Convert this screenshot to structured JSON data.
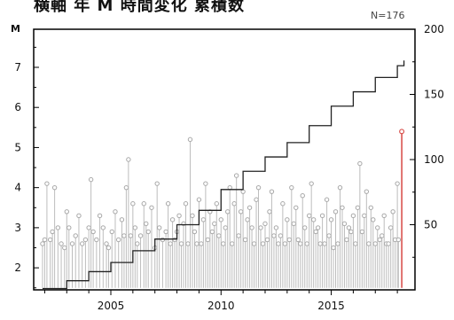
{
  "header": {
    "title": "横軸 年 M 時間変化 累積数",
    "count_label": "N=176"
  },
  "chart_data": {
    "type": "scatter",
    "title": "",
    "left_axis_label": "M",
    "xlim": [
      2001.5,
      2018.8
    ],
    "ylim_left": [
      1.45,
      7.95
    ],
    "ylim_right": [
      0,
      200
    ],
    "x_ticks": [
      2005,
      2010,
      2015
    ],
    "left_ticks": [
      2,
      3,
      4,
      5,
      6,
      7
    ],
    "right_ticks": [
      50,
      100,
      150,
      200
    ],
    "baseline_m": 1.5,
    "events_x": [
      2001.9,
      2002.0,
      2002.1,
      2002.25,
      2002.35,
      2002.45,
      2002.6,
      2002.75,
      2002.9,
      2003.0,
      2003.1,
      2003.25,
      2003.4,
      2003.55,
      2003.7,
      2003.85,
      2004.0,
      2004.1,
      2004.2,
      2004.35,
      2004.5,
      2004.65,
      2004.8,
      2004.9,
      2005.05,
      2005.2,
      2005.35,
      2005.5,
      2005.6,
      2005.7,
      2005.8,
      2005.9,
      2006.0,
      2006.1,
      2006.2,
      2006.35,
      2006.5,
      2006.6,
      2006.7,
      2006.85,
      2007.0,
      2007.1,
      2007.2,
      2007.35,
      2007.5,
      2007.6,
      2007.7,
      2007.8,
      2007.9,
      2008.0,
      2008.1,
      2008.2,
      2008.3,
      2008.4,
      2008.5,
      2008.6,
      2008.7,
      2008.8,
      2008.9,
      2009.0,
      2009.1,
      2009.2,
      2009.3,
      2009.4,
      2009.5,
      2009.6,
      2009.7,
      2009.8,
      2009.9,
      2010.0,
      2010.1,
      2010.2,
      2010.3,
      2010.4,
      2010.5,
      2010.6,
      2010.7,
      2010.8,
      2010.9,
      2011.0,
      2011.1,
      2011.2,
      2011.3,
      2011.4,
      2011.5,
      2011.6,
      2011.7,
      2011.8,
      2011.9,
      2012.0,
      2012.1,
      2012.2,
      2012.3,
      2012.4,
      2012.5,
      2012.6,
      2012.7,
      2012.8,
      2012.9,
      2013.0,
      2013.1,
      2013.2,
      2013.3,
      2013.4,
      2013.5,
      2013.6,
      2013.7,
      2013.8,
      2013.9,
      2014.0,
      2014.1,
      2014.2,
      2014.3,
      2014.4,
      2014.5,
      2014.6,
      2014.7,
      2014.8,
      2014.9,
      2015.0,
      2015.1,
      2015.2,
      2015.3,
      2015.4,
      2015.5,
      2015.6,
      2015.7,
      2015.8,
      2015.9,
      2016.0,
      2016.1,
      2016.2,
      2016.3,
      2016.4,
      2016.5,
      2016.6,
      2016.7,
      2016.8,
      2016.9,
      2017.0,
      2017.1,
      2017.2,
      2017.3,
      2017.4,
      2017.5,
      2017.6,
      2017.7,
      2017.8,
      2017.9,
      2018.0,
      2018.05
    ],
    "events_m": [
      2.6,
      2.7,
      4.1,
      2.7,
      2.9,
      4.0,
      3.0,
      2.6,
      2.5,
      3.4,
      3.0,
      2.6,
      2.8,
      3.3,
      2.6,
      2.7,
      3.0,
      4.2,
      2.9,
      2.7,
      3.3,
      3.0,
      2.6,
      2.5,
      2.9,
      3.4,
      2.7,
      3.2,
      2.8,
      4.0,
      4.7,
      2.8,
      3.6,
      3.0,
      2.6,
      2.8,
      3.6,
      3.1,
      2.9,
      3.5,
      2.5,
      4.1,
      3.0,
      2.7,
      2.9,
      3.6,
      2.6,
      3.2,
      2.7,
      2.9,
      3.3,
      2.6,
      3.1,
      3.6,
      2.6,
      5.2,
      3.3,
      2.9,
      2.6,
      3.7,
      2.6,
      3.2,
      4.1,
      2.7,
      3.4,
      2.9,
      3.1,
      3.6,
      2.8,
      3.2,
      2.6,
      3.0,
      3.4,
      4.0,
      2.6,
      3.6,
      4.3,
      2.8,
      3.4,
      3.9,
      2.7,
      3.2,
      3.5,
      3.0,
      2.6,
      3.7,
      4.0,
      3.0,
      2.6,
      3.1,
      2.7,
      3.4,
      3.9,
      2.8,
      3.0,
      2.6,
      2.8,
      3.6,
      2.6,
      3.2,
      2.7,
      4.0,
      3.1,
      3.5,
      2.7,
      2.6,
      3.8,
      3.0,
      2.6,
      3.3,
      4.1,
      3.2,
      2.9,
      3.0,
      2.6,
      3.3,
      2.6,
      3.7,
      2.8,
      3.2,
      2.5,
      3.4,
      2.6,
      4.0,
      3.5,
      3.1,
      2.7,
      3.0,
      2.9,
      3.3,
      2.6,
      3.5,
      4.6,
      2.9,
      3.3,
      3.9,
      2.6,
      3.5,
      3.2,
      2.6,
      3.0,
      2.7,
      2.8,
      3.3,
      2.6,
      2.6,
      3.0,
      3.4,
      2.7,
      4.1,
      2.7
    ],
    "highlight": {
      "x": 2018.2,
      "m": 5.4
    },
    "cumulative_x": [
      2001.9,
      2003.0,
      2004.0,
      2005.0,
      2006.0,
      2007.0,
      2008.0,
      2009.0,
      2010.0,
      2011.0,
      2012.0,
      2013.0,
      2014.0,
      2015.0,
      2016.0,
      2017.0,
      2018.0,
      2018.3
    ],
    "cumulative_n": [
      1,
      7,
      14,
      21,
      30,
      39,
      50,
      61,
      77,
      91,
      102,
      113,
      126,
      141,
      152,
      163,
      172,
      176
    ],
    "colors": {
      "axis": "#000000",
      "stem": "#bdbdbd",
      "marker": "#a8a8a8",
      "cumulative": "#222222",
      "highlight": "#d9534f"
    }
  }
}
